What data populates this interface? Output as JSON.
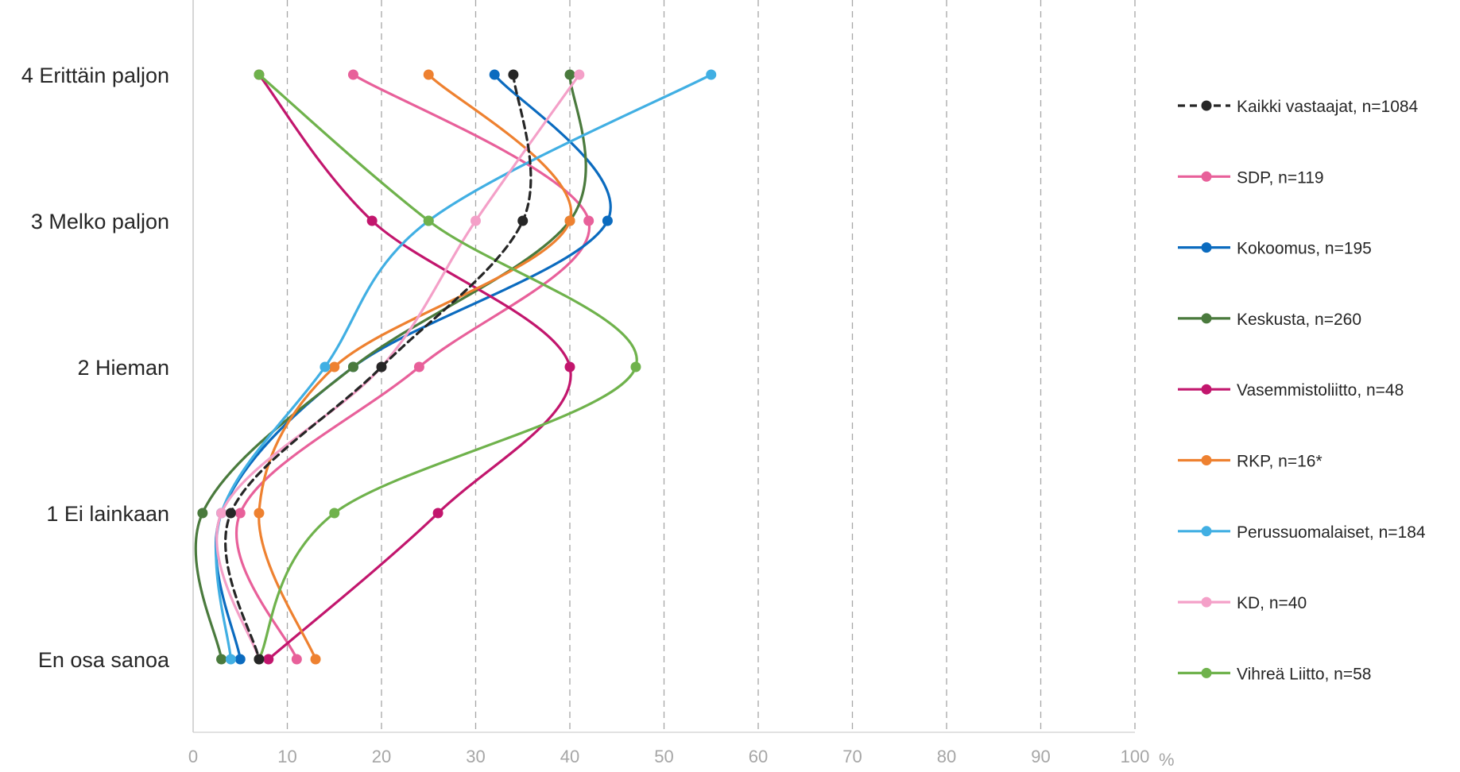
{
  "chart_data": {
    "type": "line",
    "orientation": "vertical-categories",
    "categories": [
      "4 Erittäin paljon",
      "3 Melko paljon",
      "2 Hieman",
      "1 Ei lainkaan",
      "En osa sanoa"
    ],
    "x_ticks": [
      "0",
      "10",
      "20",
      "30",
      "40",
      "50",
      "60",
      "70",
      "80",
      "90",
      "100"
    ],
    "x_unit": "%",
    "xlim": [
      0,
      100
    ],
    "grid": "vertical dashed",
    "legend_position": "right",
    "series": [
      {
        "name": "Kaikki vastaajat, n=1084",
        "color": "#262626",
        "dashed": true,
        "values": [
          34,
          35,
          20,
          4,
          7
        ]
      },
      {
        "name": "SDP, n=119",
        "color": "#e8609a",
        "dashed": false,
        "values": [
          17,
          42,
          24,
          5,
          11
        ]
      },
      {
        "name": "Kokoomus, n=195",
        "color": "#0b6bbf",
        "dashed": false,
        "values": [
          32,
          44,
          17,
          3,
          5
        ]
      },
      {
        "name": "Keskusta, n=260",
        "color": "#4a7a3d",
        "dashed": false,
        "values": [
          40,
          40,
          17,
          1,
          3
        ]
      },
      {
        "name": "Vasemmistoliitto, n=48",
        "color": "#c2166d",
        "dashed": false,
        "values": [
          7,
          19,
          40,
          26,
          8
        ]
      },
      {
        "name": "RKP, n=16*",
        "color": "#ee8130",
        "dashed": false,
        "values": [
          25,
          40,
          15,
          7,
          13
        ]
      },
      {
        "name": "Perussuomalaiset, n=184",
        "color": "#41afe3",
        "dashed": false,
        "values": [
          55,
          25,
          14,
          3,
          4
        ]
      },
      {
        "name": "KD, n=40",
        "color": "#f4a0c8",
        "dashed": false,
        "values": [
          41,
          30,
          20,
          3,
          7
        ]
      },
      {
        "name": "Vihreä Liitto, n=58",
        "color": "#6fb24c",
        "dashed": false,
        "values": [
          7,
          25,
          47,
          15,
          7
        ]
      }
    ]
  }
}
